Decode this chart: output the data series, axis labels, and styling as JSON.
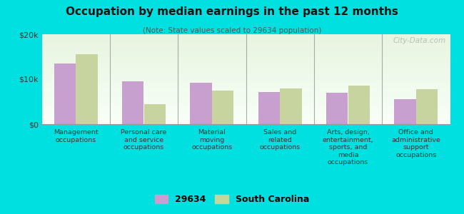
{
  "title": "Occupation by median earnings in the past 12 months",
  "subtitle": "(Note: State values scaled to 29634 population)",
  "categories": [
    "Management\noccupations",
    "Personal care\nand service\noccupations",
    "Material\nmoving\noccupations",
    "Sales and\nrelated\noccupations",
    "Arts, design,\nentertainment,\nsports, and\nmedia\noccupations",
    "Office and\nadministrative\nsupport\noccupations"
  ],
  "values_29634": [
    13500,
    9500,
    9200,
    7200,
    7000,
    5500
  ],
  "values_sc": [
    15500,
    4500,
    7500,
    8000,
    8500,
    7800
  ],
  "color_29634": "#c8a0d0",
  "color_sc": "#c8d4a0",
  "ylim": [
    0,
    20000
  ],
  "yticks": [
    0,
    10000,
    20000
  ],
  "ytick_labels": [
    "$0",
    "$10k",
    "$20k"
  ],
  "legend_labels": [
    "29634",
    "South Carolina"
  ],
  "background_color": "#00e0e0",
  "plot_bg_top": "#e8f5e0",
  "plot_bg_bottom": "#f8fff8",
  "watermark": "City-Data.com"
}
